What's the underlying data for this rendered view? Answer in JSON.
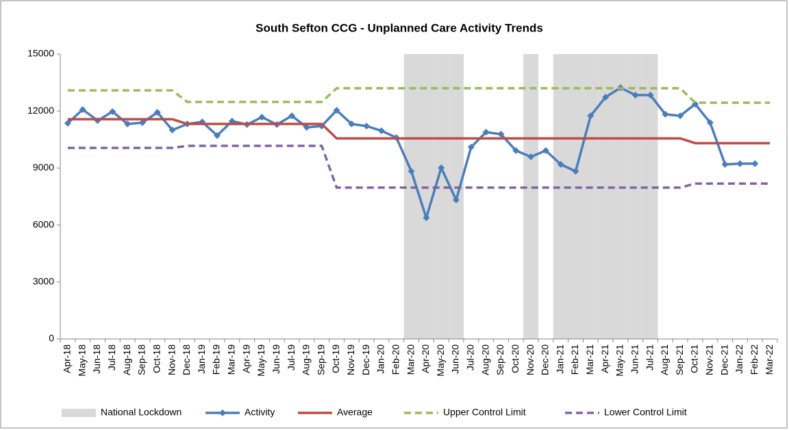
{
  "chart_data": {
    "type": "line",
    "title": "South Sefton CCG - Unplanned Care Activity Trends",
    "categories": [
      "Apr-18",
      "May-18",
      "Jun-18",
      "Jul-18",
      "Aug-18",
      "Sep-18",
      "Oct-18",
      "Nov-18",
      "Dec-18",
      "Jan-19",
      "Feb-19",
      "Mar-19",
      "Apr-19",
      "May-19",
      "Jun-19",
      "Jul-19",
      "Aug-19",
      "Sep-19",
      "Oct-19",
      "Nov-19",
      "Dec-19",
      "Jan-20",
      "Feb-20",
      "Mar-20",
      "Apr-20",
      "May-20",
      "Jun-20",
      "Jul-20",
      "Aug-20",
      "Sep-20",
      "Oct-20",
      "Nov-20",
      "Dec-20",
      "Jan-21",
      "Feb-21",
      "Mar-21",
      "Apr-21",
      "May-21",
      "Jun-21",
      "Jul-21",
      "Aug-21",
      "Sep-21",
      "Oct-21",
      "Nov-21",
      "Dec-21",
      "Jan-22",
      "Feb-22",
      "Mar-22"
    ],
    "series": [
      {
        "name": "National Lockdown",
        "kind": "bar",
        "color": "#d9d9d9",
        "values": [
          null,
          null,
          null,
          null,
          null,
          null,
          null,
          null,
          null,
          null,
          null,
          null,
          null,
          null,
          null,
          null,
          null,
          null,
          null,
          null,
          null,
          null,
          null,
          15000,
          15000,
          15000,
          15000,
          null,
          null,
          null,
          null,
          15000,
          null,
          15000,
          15000,
          15000,
          15000,
          15000,
          15000,
          15000,
          null,
          null,
          null,
          null,
          null,
          null,
          null,
          null
        ]
      },
      {
        "name": "Activity",
        "color": "#4a7ebb",
        "marker": "diamond",
        "values": [
          11360,
          12080,
          11500,
          11970,
          11320,
          11390,
          11930,
          11000,
          11320,
          11430,
          10710,
          11470,
          11290,
          11680,
          11290,
          11750,
          11140,
          11210,
          12040,
          11320,
          11210,
          10960,
          10600,
          8830,
          6380,
          9010,
          7320,
          10100,
          10890,
          10780,
          9920,
          9590,
          9920,
          9190,
          8830,
          11750,
          12730,
          13230,
          12840,
          12840,
          11830,
          11750,
          12370,
          11390,
          9190,
          9230,
          9230,
          null
        ]
      },
      {
        "name": "Average",
        "color": "#be4b48",
        "values": [
          11570,
          11570,
          11570,
          11570,
          11570,
          11570,
          11570,
          11570,
          11320,
          11320,
          11320,
          11320,
          11320,
          11320,
          11320,
          11320,
          11320,
          11320,
          10560,
          10560,
          10560,
          10560,
          10560,
          10560,
          10560,
          10560,
          10560,
          10560,
          10560,
          10560,
          10560,
          10560,
          10560,
          10560,
          10560,
          10560,
          10560,
          10560,
          10560,
          10560,
          10560,
          10560,
          10310,
          10310,
          10310,
          10310,
          10310,
          10310
        ]
      },
      {
        "name": "Upper Control Limit",
        "color": "#9bbb59",
        "dash": true,
        "values": [
          13090,
          13090,
          13090,
          13090,
          13090,
          13090,
          13090,
          13090,
          12480,
          12480,
          12480,
          12480,
          12480,
          12480,
          12480,
          12480,
          12480,
          12480,
          13200,
          13200,
          13200,
          13200,
          13200,
          13200,
          13200,
          13200,
          13200,
          13200,
          13200,
          13200,
          13200,
          13200,
          13200,
          13200,
          13200,
          13200,
          13200,
          13200,
          13200,
          13200,
          13200,
          13200,
          12440,
          12440,
          12440,
          12440,
          12440,
          12440
        ]
      },
      {
        "name": "Lower Control Limit",
        "color": "#8064a2",
        "dash": true,
        "values": [
          10060,
          10060,
          10060,
          10060,
          10060,
          10060,
          10060,
          10060,
          10170,
          10170,
          10170,
          10170,
          10170,
          10170,
          10170,
          10170,
          10170,
          10170,
          7970,
          7970,
          7970,
          7970,
          7970,
          7970,
          7970,
          7970,
          7970,
          7970,
          7970,
          7970,
          7970,
          7970,
          7970,
          7970,
          7970,
          7970,
          7970,
          7970,
          7970,
          7970,
          7970,
          7970,
          8180,
          8180,
          8180,
          8180,
          8180,
          8180
        ]
      }
    ],
    "ylim": [
      0,
      15000
    ],
    "yticks": [
      0,
      3000,
      6000,
      9000,
      12000,
      15000
    ],
    "grid": false,
    "legend": "bottom"
  }
}
